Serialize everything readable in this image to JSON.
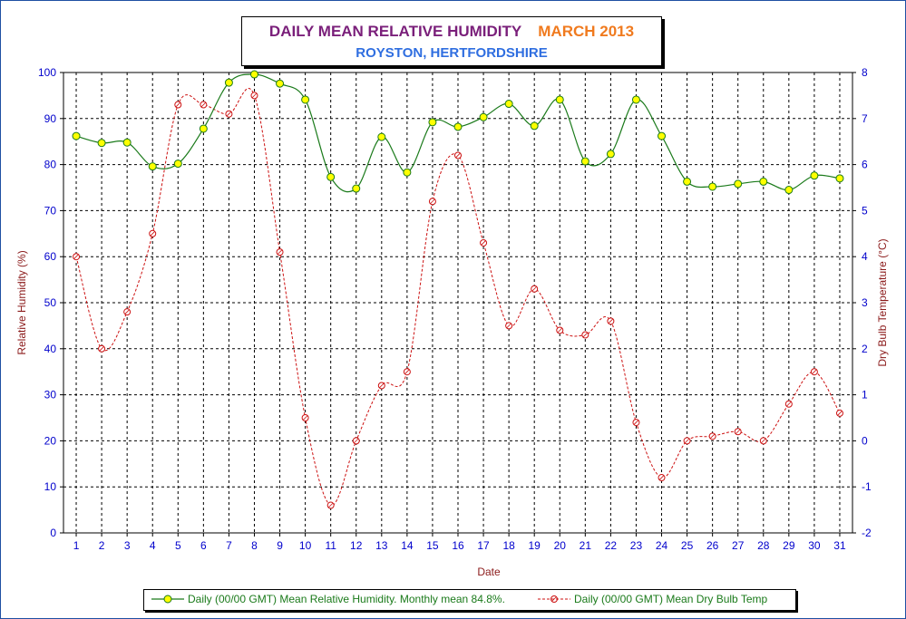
{
  "title": {
    "main": "DAILY MEAN RELATIVE HUMIDITY",
    "month": "MARCH 2013",
    "subtitle": "ROYSTON, HERTFORDSHIRE"
  },
  "colors": {
    "frame": "#1e4fa3",
    "axis_text": "#0000cc",
    "label_text": "#8b1a1a",
    "humidity_line": "#1a7a1a",
    "humidity_marker": "#ffff00",
    "temp_line": "#cc1111",
    "grid": "#000000"
  },
  "chart_data": {
    "type": "line",
    "xlabel": "Date",
    "ylabel_left": "Relative Humidity (%)",
    "ylabel_right": "Dry Bulb Temperature (°C)",
    "ylim_left": [
      0,
      100
    ],
    "ylim_right": [
      -2,
      8
    ],
    "yticks_left": [
      "0",
      "10",
      "20",
      "30",
      "40",
      "50",
      "60",
      "70",
      "80",
      "90",
      "100"
    ],
    "yticks_right": [
      "-2",
      "-1",
      "0",
      "1",
      "2",
      "3",
      "4",
      "5",
      "6",
      "7",
      "8"
    ],
    "grid": true,
    "legend_position": "bottom",
    "categories": [
      "1",
      "2",
      "3",
      "4",
      "5",
      "6",
      "7",
      "8",
      "9",
      "10",
      "11",
      "12",
      "13",
      "14",
      "15",
      "16",
      "17",
      "18",
      "19",
      "20",
      "21",
      "22",
      "23",
      "24",
      "25",
      "26",
      "27",
      "28",
      "29",
      "30",
      "31"
    ],
    "series": [
      {
        "name": "Daily (00/00 GMT) Mean Relative Humidity. Monthly mean 84.8%.",
        "axis": "left",
        "values": [
          86.2,
          84.7,
          84.8,
          79.6,
          80.2,
          87.8,
          97.8,
          99.6,
          97.6,
          94.1,
          77.3,
          74.8,
          86.0,
          78.3,
          89.2,
          88.2,
          90.3,
          93.2,
          88.4,
          94.1,
          80.7,
          82.3,
          94.1,
          86.2,
          76.3,
          75.2,
          75.8,
          76.3,
          74.5,
          77.6,
          77.0
        ]
      },
      {
        "name": "Daily (00/00 GMT) Mean Dry Bulb Temp",
        "axis": "right",
        "values": [
          4.0,
          2.0,
          2.8,
          4.5,
          7.3,
          7.3,
          7.1,
          7.5,
          4.1,
          0.5,
          -1.4,
          0.0,
          1.2,
          1.5,
          5.2,
          6.2,
          4.3,
          2.5,
          3.3,
          2.4,
          2.3,
          2.6,
          0.4,
          -0.8,
          0.0,
          0.1,
          0.2,
          0.0,
          0.8,
          1.5,
          0.6
        ]
      }
    ]
  }
}
